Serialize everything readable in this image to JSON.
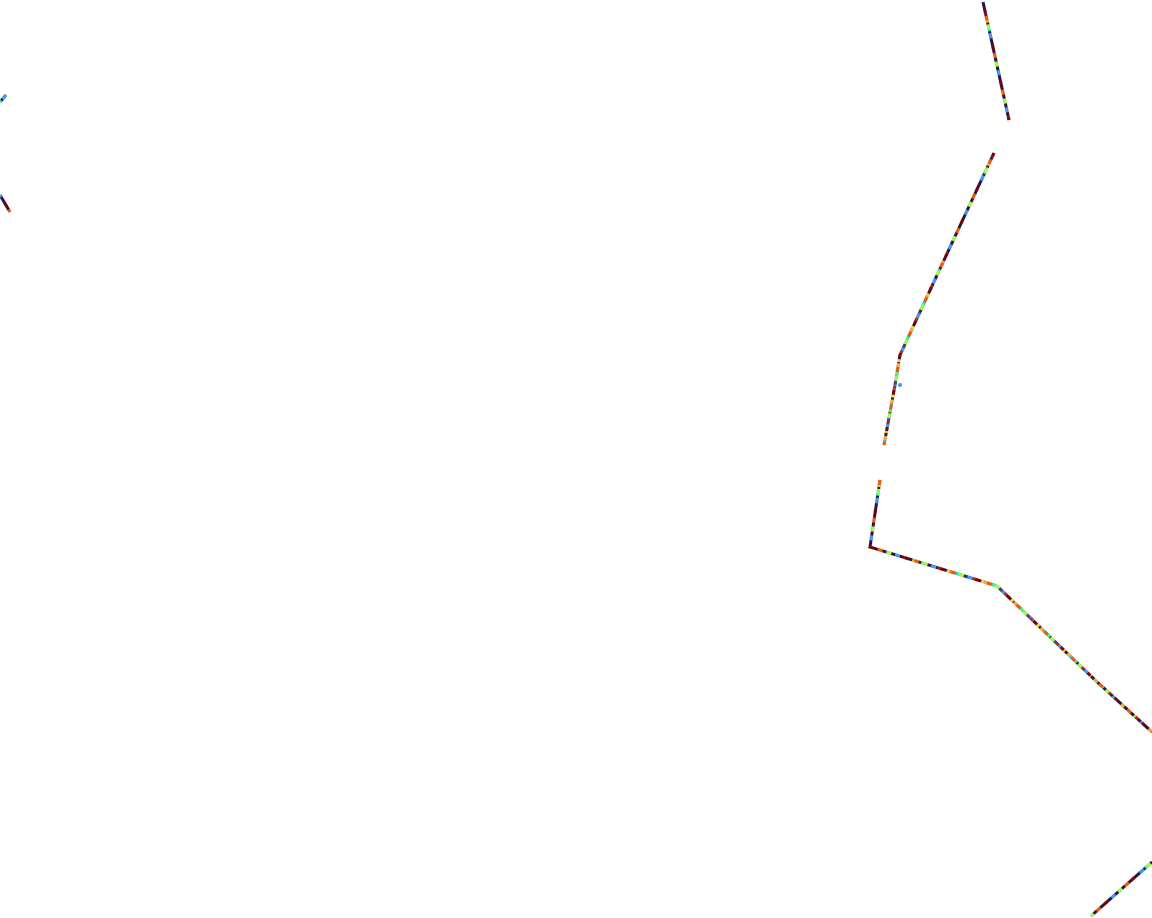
{
  "map": {
    "background": "#ffffff",
    "stroke_colors": [
      "#30123b",
      "#4145ab",
      "#3e9bfe",
      "#18d6cb",
      "#46f884",
      "#a2fc3c",
      "#e1dd37",
      "#fea632",
      "#ef5911",
      "#c42503",
      "#7a0403"
    ]
  }
}
